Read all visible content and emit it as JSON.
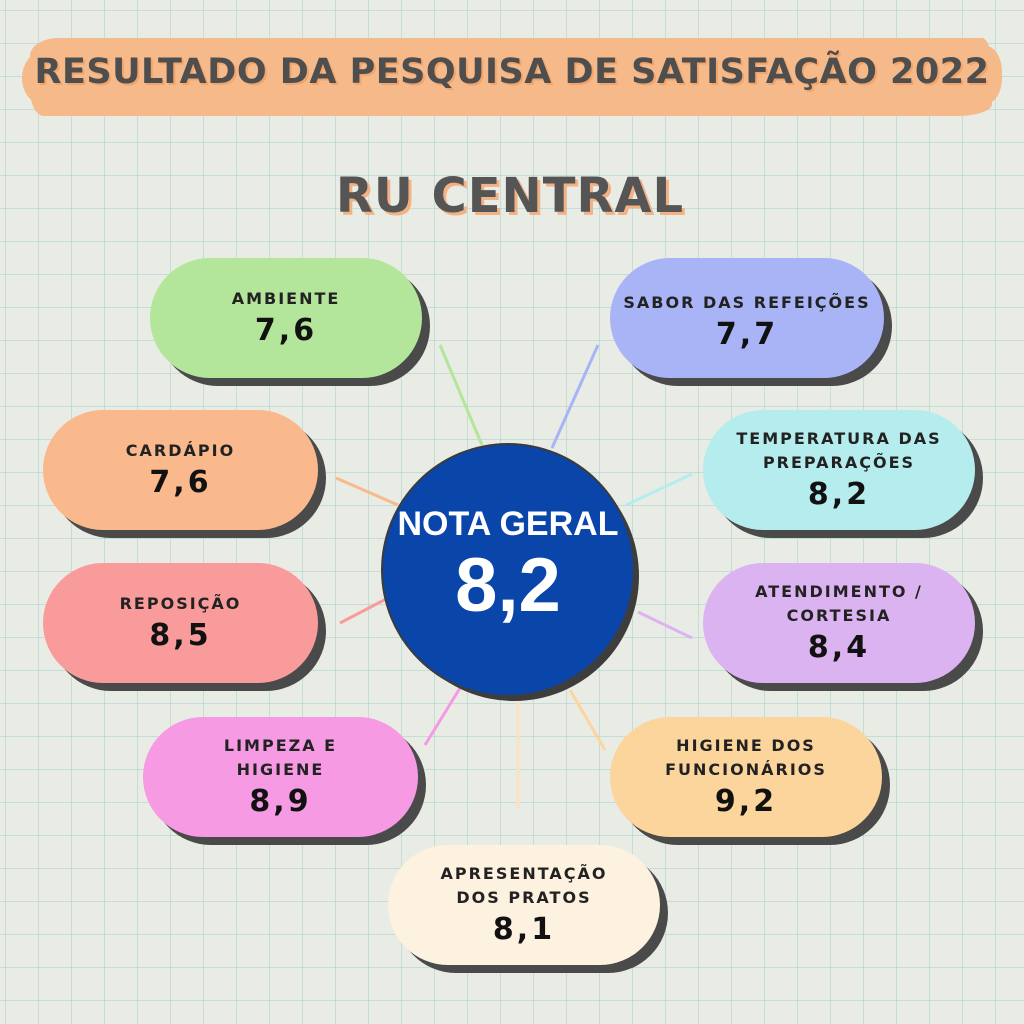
{
  "title": "RESULTADO DA PESQUISA DE SATISFAÇÃO 2022",
  "subtitle": "RU CENTRAL",
  "center": {
    "label": "NOTA GERAL",
    "value": "8,2",
    "color": "#0a45aa"
  },
  "items": [
    {
      "label": "AMBIENTE",
      "value": "7,6",
      "color": "#b3e59a"
    },
    {
      "label": "SABOR DAS REFEIÇÕES",
      "value": "7,7",
      "color": "#a8b4f6"
    },
    {
      "label": "CARDÁPIO",
      "value": "7,6",
      "color": "#f9b98d"
    },
    {
      "label": "TEMPERATURA DAS PREPARAÇÕES",
      "value": "8,2",
      "color": "#b5eced"
    },
    {
      "label": "REPOSIÇÃO",
      "value": "8,5",
      "color": "#f99b9b"
    },
    {
      "label": "ATENDIMENTO / CORTESIA",
      "value": "8,4",
      "color": "#dcb3f1"
    },
    {
      "label": "LIMPEZA E HIGIENE",
      "value": "8,9",
      "color": "#f59ae3"
    },
    {
      "label": "HIGIENE DOS FUNCIONÁRIOS",
      "value": "9,2",
      "color": "#fcd59c"
    },
    {
      "label": "APRESENTAÇÃO DOS PRATOS",
      "value": "8,1",
      "color": "#fdf2e0"
    }
  ]
}
